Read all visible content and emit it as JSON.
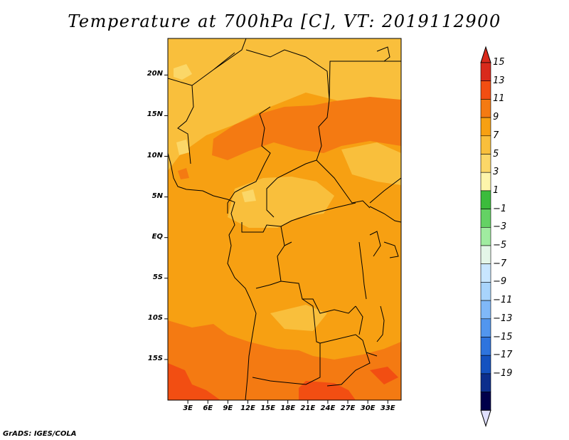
{
  "title": "Temperature at 700hPa [C], VT: 2019112900",
  "credit": "GrADS: IGES/COLA",
  "map": {
    "lat_labels": [
      "20N",
      "15N",
      "10N",
      "5N",
      "EQ",
      "5S",
      "10S",
      "15S"
    ],
    "lat_values": [
      20,
      15,
      10,
      5,
      0,
      -5,
      -10,
      -15
    ],
    "lon_labels": [
      "3E",
      "6E",
      "9E",
      "12E",
      "15E",
      "18E",
      "21E",
      "24E",
      "27E",
      "30E",
      "33E"
    ],
    "lon_values": [
      3,
      6,
      9,
      12,
      15,
      18,
      21,
      24,
      27,
      30,
      33
    ],
    "lon_range": [
      0,
      35
    ],
    "lat_range": [
      -20,
      24.5
    ]
  },
  "colorbar": {
    "labels": [
      "15",
      "13",
      "11",
      "9",
      "7",
      "5",
      "3",
      "1",
      "−1",
      "−3",
      "−5",
      "−7",
      "−9",
      "−11",
      "−13",
      "−15",
      "−17",
      "−19"
    ],
    "colors": [
      "#d92a1c",
      "#f24e12",
      "#f47a12",
      "#f7a012",
      "#f9bf3c",
      "#fbd768",
      "#fdf5ab",
      "#3cbc3c",
      "#64d264",
      "#a0eca0",
      "#e4f6e8",
      "#c8e6ff",
      "#a8d4fc",
      "#80b8f8",
      "#5296ee",
      "#2e74de",
      "#1452c0",
      "#0c2e8c",
      "#00004a"
    ],
    "top_color": "#d92a1c",
    "bottom_color": "#e0e0ff"
  },
  "colors": {
    "base_orange": "#f7a012",
    "dark_orange": "#f47a12",
    "red_orange": "#f24e12",
    "light_orange": "#f9bf3c",
    "pale_yellow": "#fbd768"
  }
}
